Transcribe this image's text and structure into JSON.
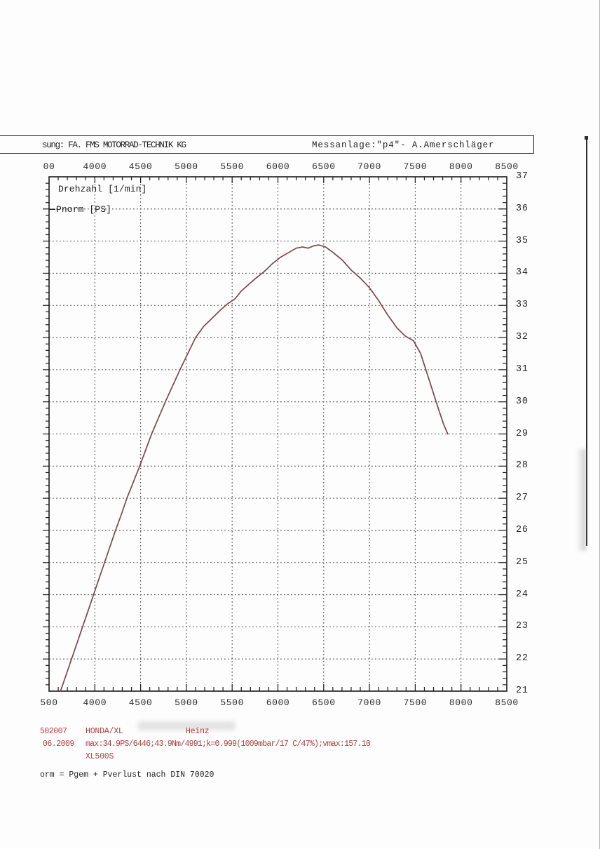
{
  "header": {
    "left_text": "sung: FA. FMS MOTORRAD-TECHNIK KG",
    "right_text": "Messanlage:\"p4\"- A.Amerschläger"
  },
  "chart_data": {
    "type": "line",
    "title": "",
    "x_axis_label": "Drehzahl [1/min]",
    "y_axis_label": "Pnorm [PS]",
    "xlim": [
      3500,
      8500
    ],
    "ylim": [
      21,
      37
    ],
    "x_minor_step": 100,
    "y_minor_step": 0.2,
    "grid": "dotted",
    "grid_color": "#4a4a4a",
    "axis_color": "#1c1c1c",
    "x_tick_values": [
      3500,
      4000,
      4500,
      5000,
      5500,
      6000,
      6500,
      7000,
      7500,
      8000,
      8500
    ],
    "x_tick_labels_top": [
      "00",
      "4000",
      "4500",
      "5000",
      "5500",
      "6000",
      "6500",
      "7000",
      "7500",
      "8000",
      "8500"
    ],
    "x_tick_labels_bottom": [
      "500",
      "4000",
      "4500",
      "5000",
      "5500",
      "6000",
      "6500",
      "7000",
      "7500",
      "8000",
      "8500"
    ],
    "y_tick_values": [
      21,
      22,
      23,
      24,
      25,
      26,
      27,
      28,
      29,
      30,
      31,
      32,
      33,
      34,
      35,
      36,
      37
    ],
    "y_tick_labels_right": [
      "21",
      "22",
      "23",
      "24",
      "25",
      "26",
      "27",
      "28",
      "29",
      "30",
      "31",
      "32",
      "33",
      "34",
      "35",
      "36",
      "37"
    ],
    "legend": [
      "Drehzahl [1/min]",
      "Pnorm [PS]"
    ],
    "legend_position": "top-left-inside",
    "series": [
      {
        "name": "Pnorm [PS]",
        "color": "#7a4848",
        "peak": {
          "rpm": 6446,
          "ps": 34.9
        },
        "points": [
          [
            3625,
            21.0
          ],
          [
            3680,
            21.45
          ],
          [
            3740,
            21.95
          ],
          [
            3800,
            22.45
          ],
          [
            3860,
            22.95
          ],
          [
            3920,
            23.45
          ],
          [
            3980,
            23.95
          ],
          [
            4040,
            24.45
          ],
          [
            4100,
            24.95
          ],
          [
            4160,
            25.45
          ],
          [
            4220,
            25.95
          ],
          [
            4290,
            26.5
          ],
          [
            4350,
            27.0
          ],
          [
            4420,
            27.5
          ],
          [
            4490,
            28.0
          ],
          [
            4555,
            28.5
          ],
          [
            4620,
            29.0
          ],
          [
            4695,
            29.5
          ],
          [
            4770,
            30.0
          ],
          [
            4850,
            30.5
          ],
          [
            4930,
            31.0
          ],
          [
            5015,
            31.5
          ],
          [
            5100,
            32.0
          ],
          [
            5190,
            32.35
          ],
          [
            5280,
            32.6
          ],
          [
            5370,
            32.85
          ],
          [
            5450,
            33.05
          ],
          [
            5530,
            33.2
          ],
          [
            5600,
            33.45
          ],
          [
            5680,
            33.65
          ],
          [
            5760,
            33.85
          ],
          [
            5850,
            34.05
          ],
          [
            5940,
            34.3
          ],
          [
            6030,
            34.5
          ],
          [
            6120,
            34.65
          ],
          [
            6200,
            34.78
          ],
          [
            6270,
            34.82
          ],
          [
            6330,
            34.78
          ],
          [
            6390,
            34.85
          ],
          [
            6446,
            34.88
          ],
          [
            6520,
            34.82
          ],
          [
            6600,
            34.65
          ],
          [
            6700,
            34.42
          ],
          [
            6800,
            34.1
          ],
          [
            6900,
            33.85
          ],
          [
            7000,
            33.55
          ],
          [
            7100,
            33.15
          ],
          [
            7200,
            32.7
          ],
          [
            7300,
            32.3
          ],
          [
            7390,
            32.05
          ],
          [
            7480,
            31.9
          ],
          [
            7560,
            31.5
          ],
          [
            7650,
            30.7
          ],
          [
            7740,
            29.9
          ],
          [
            7810,
            29.3
          ],
          [
            7855,
            29.0
          ]
        ]
      }
    ]
  },
  "footer": {
    "text_color": "#b04040",
    "order_no": "502007",
    "vehicle": "HONDA/XL",
    "customer": "Heinz",
    "date": "06.2009",
    "result_line": "max:34.9PS/6446;43.9Nm/4991;k=0.999(1009mbar/17 C/47%);vmax:157.10",
    "model": "XL500S",
    "formula_note": "orm = Pgem + Pverlust nach DIN 70020"
  }
}
